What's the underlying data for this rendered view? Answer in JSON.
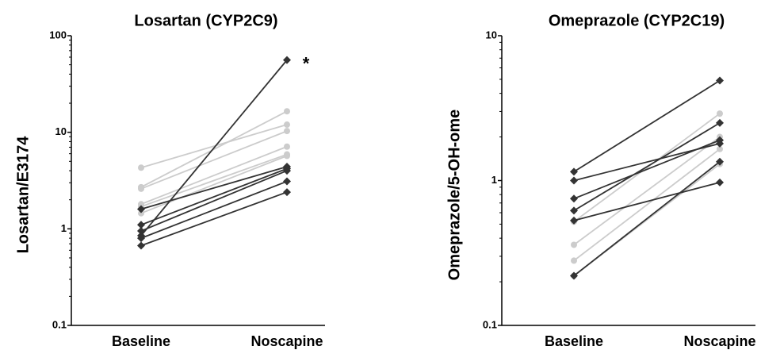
{
  "chart_data": [
    {
      "type": "line",
      "title": "Losartan (CYP2C9)",
      "y_label": "Losartan/E3174",
      "log_scale": true,
      "categories": [
        "Baseline",
        "Noscapine"
      ],
      "ylim": [
        0.1,
        100
      ],
      "yticks": [
        0.1,
        1,
        10,
        100
      ],
      "annotations": [
        {
          "text": "*",
          "category": 1,
          "y": 56
        }
      ],
      "series": [
        {
          "color": "#cccccc",
          "marker": "circle",
          "values": [
            4.3,
            12
          ]
        },
        {
          "color": "#cccccc",
          "marker": "circle",
          "values": [
            2.7,
            16.5
          ]
        },
        {
          "color": "#cccccc",
          "marker": "circle",
          "values": [
            2.6,
            10.3
          ]
        },
        {
          "color": "#cccccc",
          "marker": "circle",
          "values": [
            1.8,
            7.1
          ]
        },
        {
          "color": "#cccccc",
          "marker": "circle",
          "values": [
            1.7,
            5.9
          ]
        },
        {
          "color": "#cccccc",
          "marker": "circle",
          "values": [
            1.45,
            5.7
          ]
        },
        {
          "color": "#333333",
          "marker": "diamond",
          "values": [
            0.85,
            56
          ]
        },
        {
          "color": "#333333",
          "marker": "diamond",
          "values": [
            1.6,
            4.4
          ]
        },
        {
          "color": "#333333",
          "marker": "diamond",
          "values": [
            1.1,
            4.2
          ]
        },
        {
          "color": "#333333",
          "marker": "diamond",
          "values": [
            0.95,
            4.0
          ]
        },
        {
          "color": "#333333",
          "marker": "diamond",
          "values": [
            0.8,
            3.1
          ]
        },
        {
          "color": "#333333",
          "marker": "diamond",
          "values": [
            0.67,
            2.4
          ]
        }
      ]
    },
    {
      "type": "line",
      "title": "Omeprazole (CYP2C19)",
      "y_label": "Omeprazole/5-OH-ome",
      "log_scale": true,
      "categories": [
        "Baseline",
        "Noscapine"
      ],
      "ylim": [
        0.1,
        10
      ],
      "yticks": [
        0.1,
        1,
        10
      ],
      "series": [
        {
          "color": "#cccccc",
          "marker": "circle",
          "values": [
            0.52,
            2.9
          ]
        },
        {
          "color": "#cccccc",
          "marker": "circle",
          "values": [
            0.36,
            2.0
          ]
        },
        {
          "color": "#cccccc",
          "marker": "circle",
          "values": [
            0.28,
            1.65
          ]
        },
        {
          "color": "#cccccc",
          "marker": "circle",
          "values": [
            0.22,
            1.3
          ]
        },
        {
          "color": "#333333",
          "marker": "diamond",
          "values": [
            1.15,
            4.9
          ]
        },
        {
          "color": "#333333",
          "marker": "diamond",
          "values": [
            1.0,
            1.8
          ]
        },
        {
          "color": "#333333",
          "marker": "diamond",
          "values": [
            0.75,
            1.9
          ]
        },
        {
          "color": "#333333",
          "marker": "diamond",
          "values": [
            0.62,
            2.5
          ]
        },
        {
          "color": "#333333",
          "marker": "diamond",
          "values": [
            0.53,
            0.97
          ]
        },
        {
          "color": "#333333",
          "marker": "diamond",
          "values": [
            0.22,
            1.35
          ]
        }
      ]
    }
  ]
}
